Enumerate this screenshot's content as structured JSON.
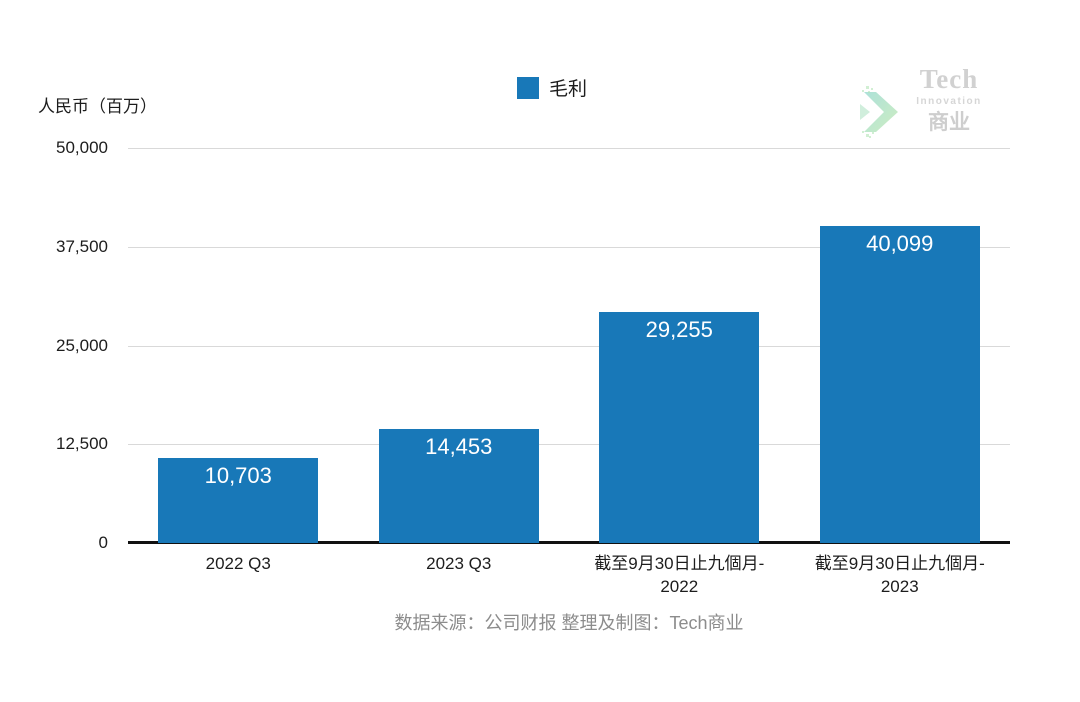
{
  "chart": {
    "y_axis_title": "人民币（百万）",
    "legend": {
      "label": "毛利",
      "color": "#1878b8"
    },
    "footer": "数据来源：公司财报 整理及制图：Tech商业"
  },
  "logo": {
    "name": "Tech",
    "subname": "Innovation",
    "brand": "商业"
  },
  "chart_data": {
    "type": "bar",
    "title": "",
    "xlabel": "",
    "ylabel": "人民币（百万）",
    "series": [
      {
        "name": "毛利",
        "values": [
          10703,
          14453,
          29255,
          40099
        ]
      }
    ],
    "categories": [
      "2022 Q3",
      "2023 Q3",
      "截至9月30日止九個月-2022",
      "截至9月30日止九個月-2023"
    ],
    "category_lines": [
      [
        "2022 Q3"
      ],
      [
        "2023 Q3"
      ],
      [
        "截至9月30日止九個月-",
        "2022"
      ],
      [
        "截至9月30日止九個月-",
        "2023"
      ]
    ],
    "value_labels": [
      "10,703",
      "14,453",
      "29,255",
      "40,099"
    ],
    "ylim": [
      0,
      50000
    ],
    "yticks": [
      0,
      12500,
      25000,
      37500,
      50000
    ],
    "ytick_labels": [
      "0",
      "12,500",
      "25,000",
      "37,500",
      "50,000"
    ],
    "grid": true,
    "legend_position": "top-center",
    "bar_color": "#1878b8"
  },
  "colors": {
    "bar": "#1878b8",
    "gridline": "#d9d9d9",
    "axis_line": "#111111",
    "text": "#1d1d1d",
    "footer_text": "#8c8c8c",
    "logo_text": "#c9c9c9",
    "logo_teal": "#7ed0c3",
    "logo_green": "#b2e39f"
  }
}
